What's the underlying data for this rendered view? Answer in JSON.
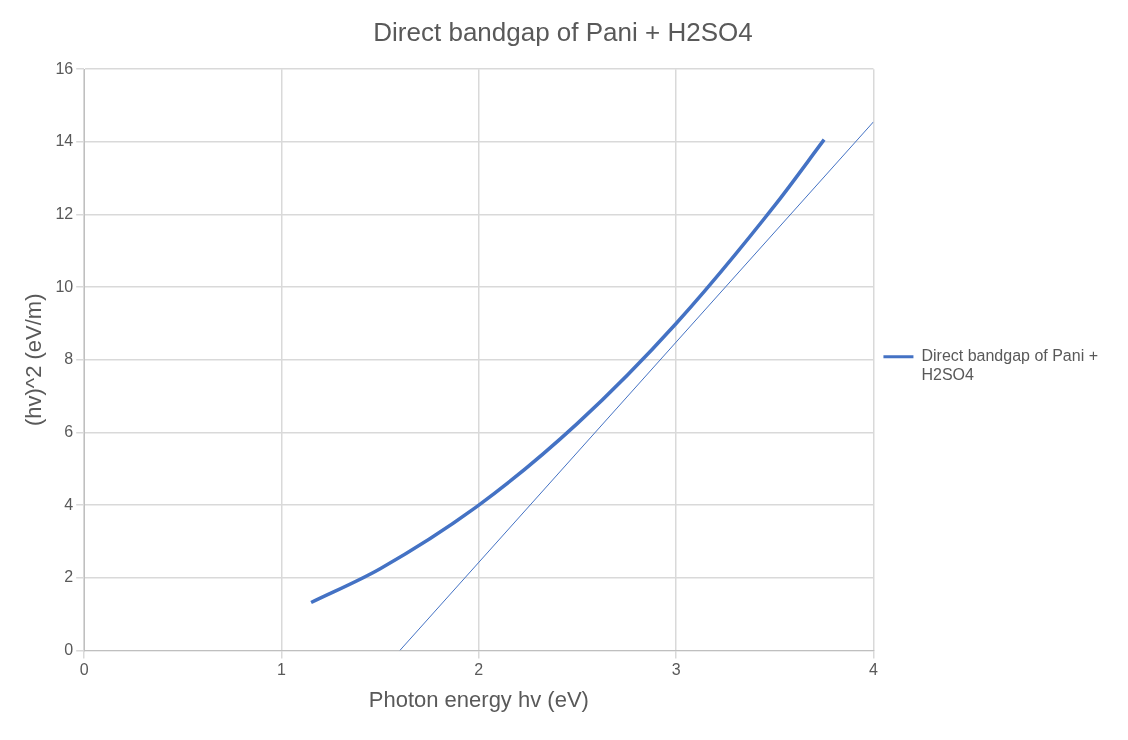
{
  "chart_data": {
    "type": "line",
    "title": "Direct bandgap of Pani + H2SO4",
    "xlabel": "Photon energy hv (eV)",
    "ylabel": "(hv)^2 (eV/m)",
    "xlim": [
      0,
      4
    ],
    "xticks": [
      0,
      1,
      2,
      3,
      4
    ],
    "ylim": [
      0,
      16
    ],
    "yticks": [
      0,
      2,
      4,
      6,
      8,
      10,
      12,
      14,
      16
    ],
    "grid": true,
    "legend": "right",
    "marker": "none",
    "series": [
      {
        "name": "Direct bandgap of Pani + H2SO4",
        "color": "#4472c4",
        "x": [
          1.15,
          1.5,
          2,
          2.5,
          3,
          3.5,
          3.75
        ],
        "values": [
          1.32,
          2.25,
          4,
          6.25,
          9,
          12.25,
          14.06
        ]
      },
      {
        "color": "#4472c4",
        "x": [
          1.6,
          4
        ],
        "values": [
          0,
          14.55
        ]
      }
    ]
  }
}
